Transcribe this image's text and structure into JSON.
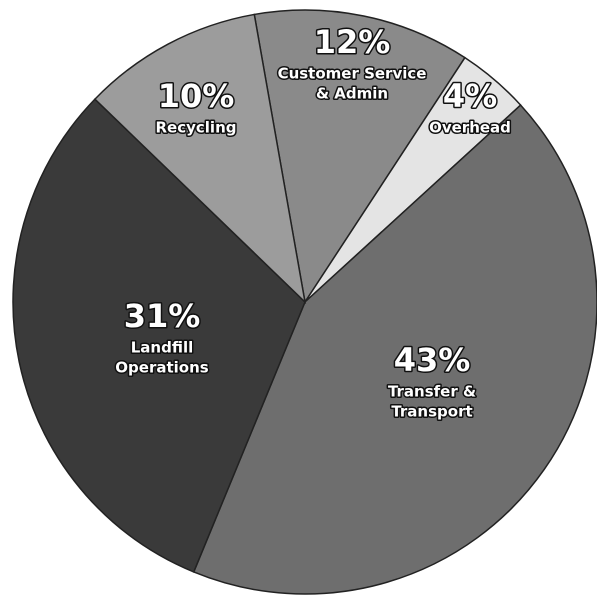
{
  "chart_data": {
    "type": "pie",
    "categories": [
      [
        "Customer Service",
        "& Admin"
      ],
      [
        "Overhead"
      ],
      [
        "Transfer &",
        "Transport"
      ],
      [
        "Landfill",
        "Operations"
      ],
      [
        "Recycling"
      ]
    ],
    "values": [
      12,
      4,
      43,
      31,
      10
    ],
    "value_labels": [
      "12%",
      "4%",
      "43%",
      "31%",
      "10%"
    ],
    "colors": [
      "#8a8a8a",
      "#e4e4e4",
      "#6e6e6e",
      "#3a3a3a",
      "#9c9c9c"
    ]
  }
}
